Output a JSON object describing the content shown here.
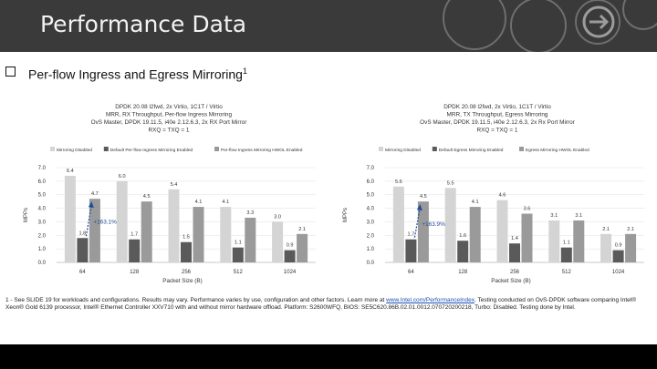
{
  "header": {
    "title": "Performance Data"
  },
  "bullet": {
    "text": "Per-flow Ingress and Egress Mirroring",
    "superscript": "1"
  },
  "footnote": {
    "text_before": "1 - See SLIDE 19 for workloads and configurations. Results may vary. Performance varies by use, configuration and other factors. Learn more at ",
    "link": "www.Intel.com/PerformanceIndex",
    "text_after": ". Testing conducted on OvS-DPDK software comparing Intel® Xeon® Gold 6139 processor, Intel® Ethernet Controller XXV710 with and without mirror hardware offload. Platform: S2600WFQ, BIOS: SE5C620.86B.02.01.0012.070720200218, Turbo: Disabled. Testing done by Intel."
  },
  "chart_data": [
    {
      "type": "bar",
      "title": "DPDK 20.08 l2fwd, 2x Virtio, 1C1T / Virtio\nMRR, RX Throughput, Per-flow Ingress Mirroring\nOvS Master, DPDK 19.11.5, i40e 2.12.6.3, 2x RX Port Mirror\nRXQ = TXQ = 1",
      "categories": [
        "64",
        "128",
        "256",
        "512",
        "1024"
      ],
      "series": [
        {
          "name": "Mirroring Disabled",
          "color": "#d4d4d4",
          "values": [
            6.4,
            6.0,
            5.4,
            4.1,
            3.0
          ]
        },
        {
          "name": "Default Per-flow Ingress Mirroring Enabled",
          "color": "#5a5a5a",
          "values": [
            1.8,
            1.7,
            1.5,
            1.1,
            0.9
          ]
        },
        {
          "name": "Per-flow Ingress Mirroring HWOL Enabled",
          "color": "#9a9a9a",
          "values": [
            4.7,
            4.5,
            4.1,
            3.3,
            2.1
          ]
        }
      ],
      "data_labels": [
        [
          "6.4",
          "1.8",
          "4.7"
        ],
        [
          "6.0",
          "1.7",
          "4.5"
        ],
        [
          "5.4",
          "1.5",
          "4.1"
        ],
        [
          "4.1",
          "1.1",
          "3.3"
        ],
        [
          "3.0",
          "0.9",
          "2.1"
        ]
      ],
      "annotation": "+163.1%",
      "xlabel": "Packet Size (B)",
      "ylabel": "MPPs",
      "ylim": [
        0,
        7
      ],
      "yticks": [
        "0.0",
        "1.0",
        "2.0",
        "3.0",
        "4.0",
        "5.0",
        "6.0",
        "7.0"
      ],
      "legend_position": "top-left"
    },
    {
      "type": "bar",
      "title": "DPDK 20.08 l2fwd, 2x Virtio, 1C1T / Virtio\nMRR, TX Throughput, Egress Mirroring\nOvS Master, DPDK 19.11.5, i40e 2.12.6.3, 2x Rx Port Mirror\nRXQ = TXQ = 1",
      "categories": [
        "64",
        "128",
        "256",
        "512",
        "1024"
      ],
      "series": [
        {
          "name": "Mirroring Disabled",
          "color": "#d4d4d4",
          "values": [
            5.6,
            5.5,
            4.6,
            3.1,
            2.1
          ]
        },
        {
          "name": "Default Egress Mirroring Enabled",
          "color": "#5a5a5a",
          "values": [
            1.7,
            1.6,
            1.4,
            1.1,
            0.9
          ]
        },
        {
          "name": "Egress Mirroring HWOL Enabled",
          "color": "#9a9a9a",
          "values": [
            4.5,
            4.1,
            3.6,
            3.1,
            2.1
          ]
        }
      ],
      "data_labels": [
        [
          "5.6",
          "1.7",
          "4.5"
        ],
        [
          "5.5",
          "1.6",
          "4.1"
        ],
        [
          "4.6",
          "1.4",
          "3.6"
        ],
        [
          "3.1",
          "1.1",
          "3.1"
        ],
        [
          "2.1",
          "0.9",
          "2.1"
        ]
      ],
      "annotation": "+163.9%",
      "xlabel": "Packet Size (B)",
      "ylabel": "MPPs",
      "ylim": [
        0,
        7
      ],
      "yticks": [
        "0.0",
        "1.0",
        "2.0",
        "3.0",
        "4.0",
        "5.0",
        "6.0",
        "7.0"
      ],
      "legend_position": "top-left"
    }
  ]
}
